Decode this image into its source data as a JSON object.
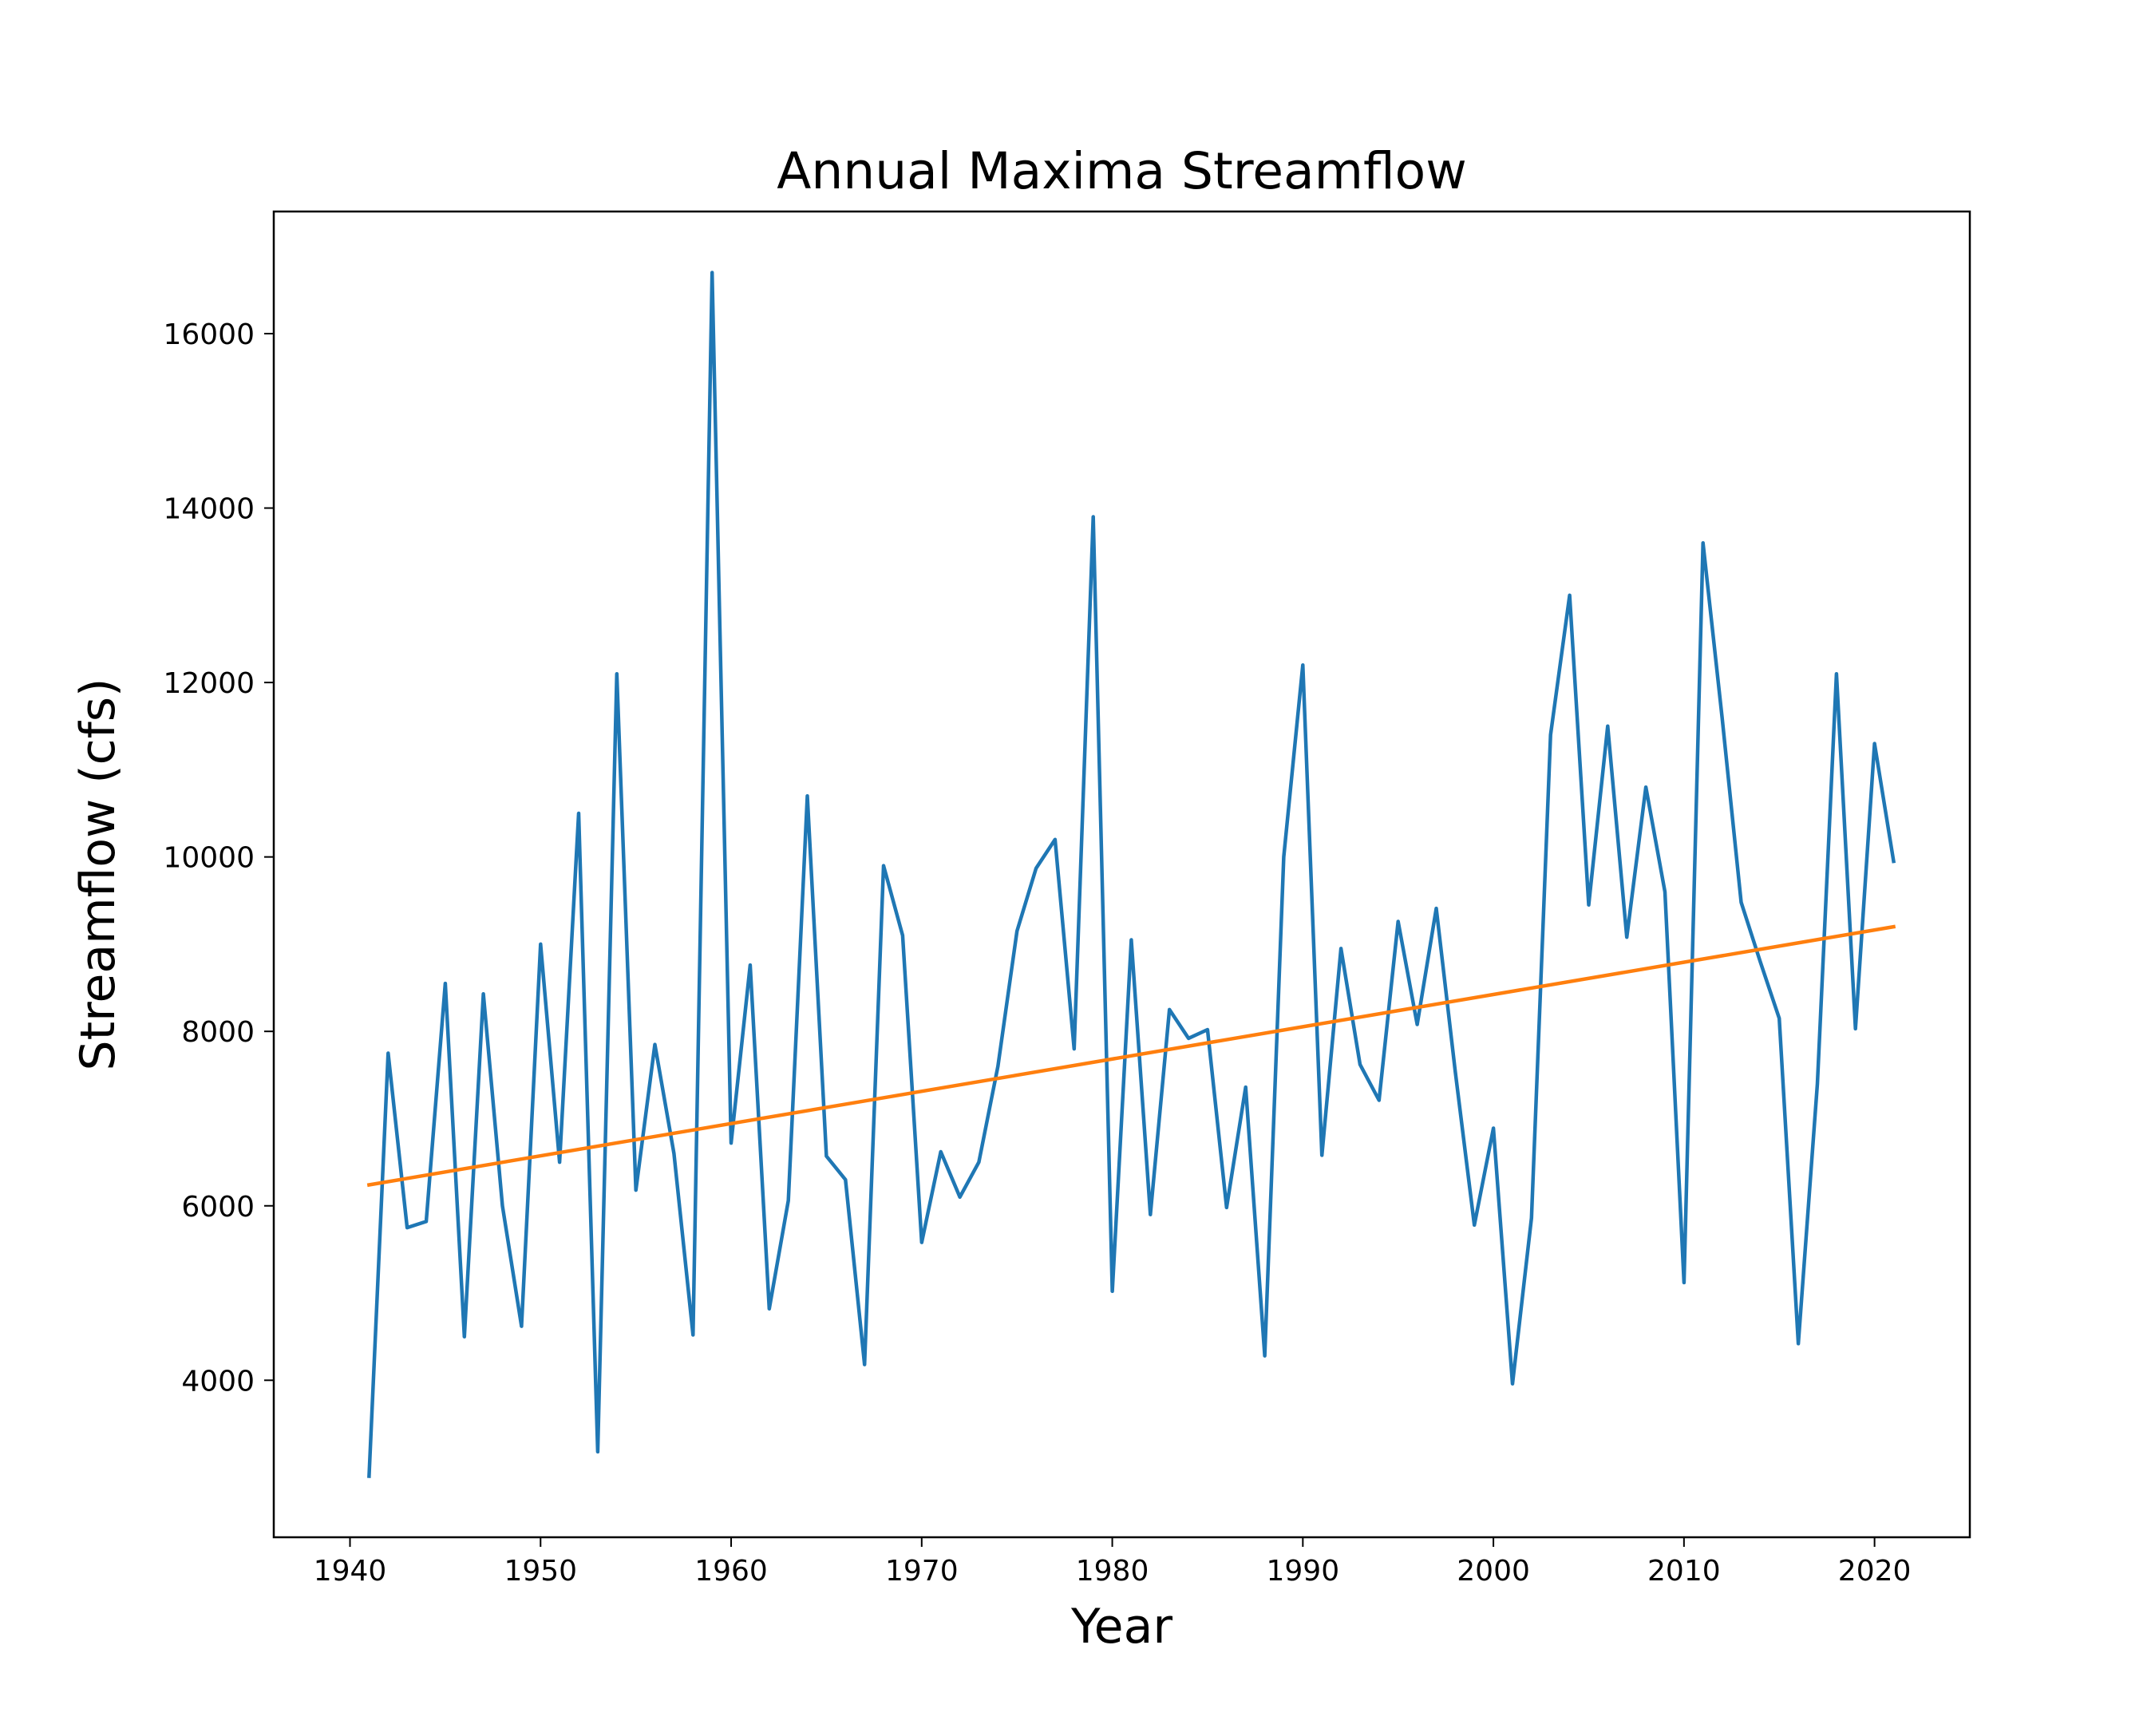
{
  "chart_data": {
    "type": "line",
    "title": "Annual Maxima Streamflow",
    "xlabel": "Year",
    "ylabel": "Streamflow (cfs)",
    "xlim": [
      1936,
      2025
    ],
    "ylim": [
      2200,
      17400
    ],
    "xticks": [
      1940,
      1950,
      1960,
      1970,
      1980,
      1990,
      2000,
      2010,
      2020
    ],
    "yticks": [
      4000,
      6000,
      8000,
      10000,
      12000,
      14000,
      16000
    ],
    "grid": false,
    "legend": "none",
    "series": [
      {
        "color": "#1f77b4",
        "x": [
          1941,
          1942,
          1943,
          1944,
          1945,
          1946,
          1947,
          1948,
          1949,
          1950,
          1951,
          1952,
          1953,
          1954,
          1955,
          1956,
          1957,
          1958,
          1959,
          1960,
          1961,
          1962,
          1963,
          1964,
          1965,
          1966,
          1967,
          1968,
          1969,
          1970,
          1971,
          1972,
          1973,
          1974,
          1975,
          1976,
          1977,
          1978,
          1979,
          1980,
          1981,
          1982,
          1983,
          1984,
          1985,
          1986,
          1987,
          1988,
          1989,
          1990,
          1991,
          1992,
          1993,
          1994,
          1995,
          1996,
          1997,
          1998,
          1999,
          2000,
          2001,
          2002,
          2003,
          2004,
          2005,
          2006,
          2007,
          2008,
          2009,
          2010,
          2011,
          2012,
          2013,
          2014,
          2015,
          2016,
          2017,
          2018,
          2019,
          2020,
          2021
        ],
        "values": [
          2900,
          7750,
          5750,
          5820,
          8550,
          4500,
          8430,
          6000,
          4620,
          9000,
          6500,
          10500,
          3180,
          12100,
          6180,
          7850,
          6600,
          4520,
          16700,
          6720,
          8760,
          4820,
          6060,
          10700,
          6570,
          6300,
          4180,
          9900,
          9100,
          5580,
          6620,
          6100,
          6500,
          7600,
          9150,
          9870,
          10200,
          7800,
          13900,
          5020,
          9050,
          5900,
          8250,
          7920,
          8020,
          5980,
          7360,
          4280,
          10000,
          12200,
          6580,
          8950,
          7620,
          7210,
          9260,
          8080,
          9410,
          7540,
          5780,
          6890,
          3960,
          5860,
          11400,
          13000,
          9450,
          11500,
          9080,
          10800,
          9600,
          5120,
          13600,
          11600,
          9480,
          8800,
          8150,
          4420,
          7400,
          12100,
          8030,
          11300,
          9950
        ]
      },
      {
        "color": "#ff7f0e",
        "x": [
          1941,
          2021
        ],
        "values": [
          6240,
          9200
        ]
      }
    ]
  }
}
